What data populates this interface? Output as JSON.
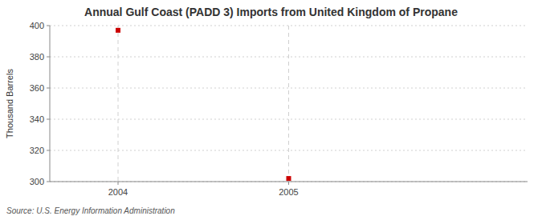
{
  "chart_data": {
    "type": "scatter",
    "title": "Annual Gulf Coast (PADD 3) Imports from United Kingdom of Propane",
    "y_label": "Thousand Barrels",
    "source": "Source: U.S. Energy Information Administration",
    "x": [
      2004,
      2005
    ],
    "values": [
      397,
      302
    ],
    "color": "#cc0000",
    "marker": "square",
    "xlim": [
      2003.6,
      2006.4
    ],
    "xticks": [
      2004,
      2005
    ],
    "ylim": [
      300,
      400
    ],
    "yticks": [
      300,
      320,
      340,
      360,
      380,
      400
    ],
    "grid": true
  }
}
